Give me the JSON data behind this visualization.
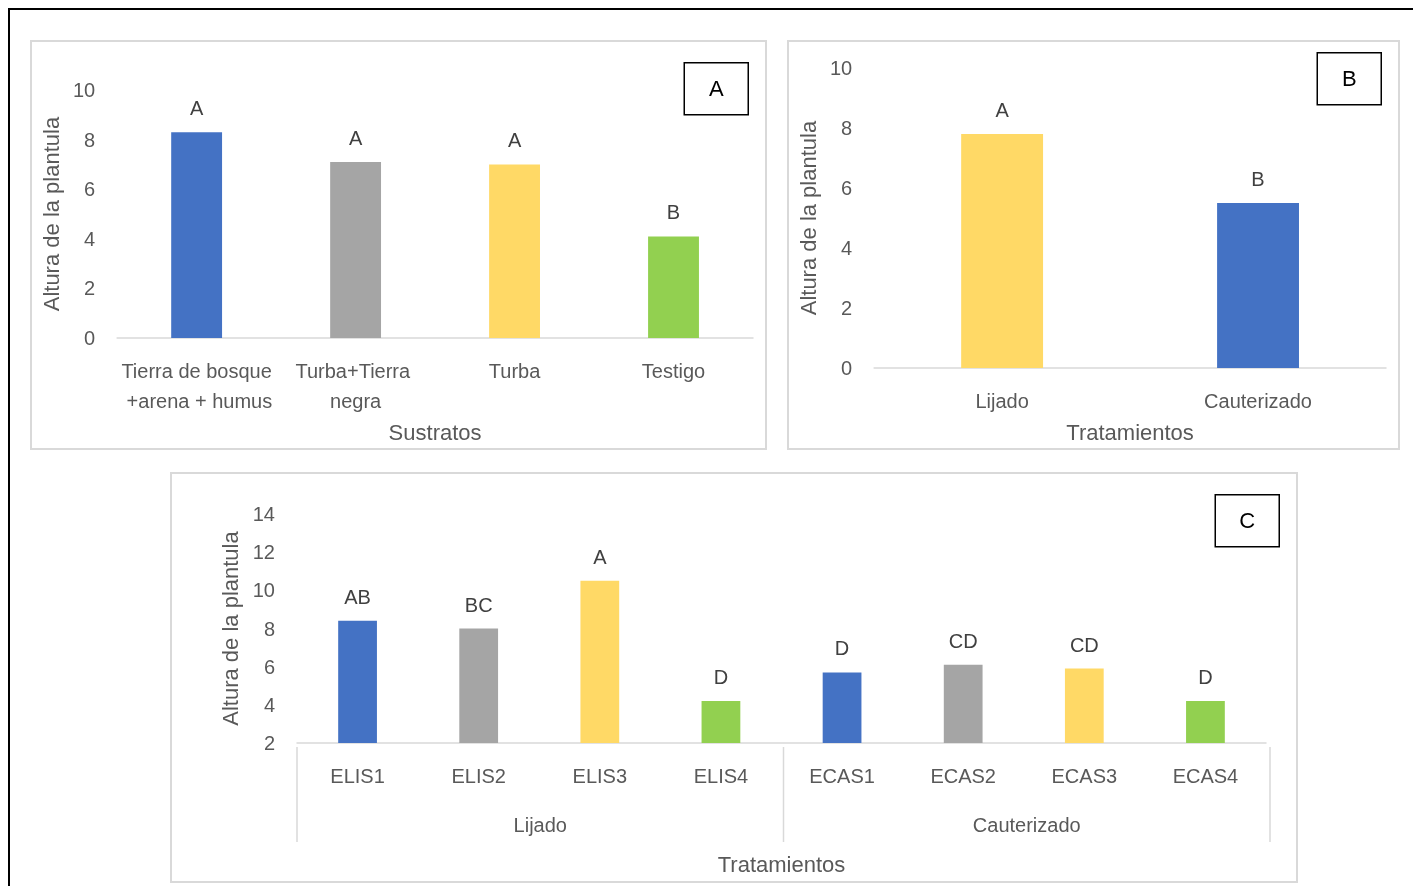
{
  "chart_data": [
    {
      "type": "bar",
      "ylabel": "Altura de la plantula",
      "xlabel": "Sustratos",
      "categories": [
        "Tierra de bosque +arena + humus",
        "Turba+Tierra negra",
        "Turba",
        "Testigo"
      ],
      "values": [
        8.3,
        7.1,
        7.0,
        4.1
      ],
      "colors": [
        "#4472c4",
        "#a5a5a5",
        "#ffd966",
        "#92d050"
      ],
      "ylim": [
        0,
        10
      ],
      "yticks": [
        0,
        2,
        4,
        6,
        8,
        10
      ],
      "annotations": [
        "A",
        {
          "text": "A",
          "x": "Tierra de bosque +arena + humus",
          "y": 8.3
        },
        {
          "text": "A",
          "x": "Turba+Tierra negra",
          "y": 7.1
        },
        {
          "text": "A",
          "x": "Turba",
          "y": 7.0
        },
        {
          "text": "B",
          "x": "Testigo",
          "y": 4.1
        }
      ]
    },
    {
      "type": "bar",
      "ylabel": "Altura de la plantula",
      "xlabel": "Tratamientos",
      "categories": [
        "Lijado",
        "Cauterizado"
      ],
      "values": [
        7.8,
        5.5
      ],
      "colors": [
        "#ffd966",
        "#4472c4"
      ],
      "ylim": [
        0,
        10
      ],
      "yticks": [
        0,
        2,
        4,
        6,
        8,
        10
      ],
      "annotations": [
        "B",
        {
          "text": "A",
          "x": "Lijado",
          "y": 7.8
        },
        {
          "text": "B",
          "x": "Cauterizado",
          "y": 5.5
        }
      ]
    },
    {
      "type": "bar",
      "ylabel": "Altura de la plantula",
      "xlabel": "Tratamientos",
      "categories": [
        "ELIS1",
        "ELIS2",
        "ELIS3",
        "ELIS4",
        "ECAS1",
        "ECAS2",
        "ECAS3",
        "ECAS4"
      ],
      "values": [
        8.4,
        8.0,
        10.5,
        4.2,
        5.7,
        6.1,
        5.9,
        4.2
      ],
      "colors": [
        "#4472c4",
        "#a5a5a5",
        "#ffd966",
        "#92d050",
        "#4472c4",
        "#a5a5a5",
        "#ffd966",
        "#92d050"
      ],
      "ylim": [
        2,
        14
      ],
      "yticks": [
        2,
        4,
        6,
        8,
        10,
        12,
        14
      ],
      "annotations": [
        "C",
        "Lijado",
        "Cauterizado",
        {
          "text": "AB",
          "x": "ELIS1",
          "y": 8.4
        },
        {
          "text": "BC",
          "x": "ELIS2",
          "y": 8.0
        },
        {
          "text": "A",
          "x": "ELIS3",
          "y": 10.5
        },
        {
          "text": "D",
          "x": "ELIS4",
          "y": 4.2
        },
        {
          "text": "D",
          "x": "ECAS1",
          "y": 5.7
        },
        {
          "text": "CD",
          "x": "ECAS2",
          "y": 6.1
        },
        {
          "text": "CD",
          "x": "ECAS3",
          "y": 5.9
        },
        {
          "text": "D",
          "x": "ECAS4",
          "y": 4.2
        }
      ]
    }
  ]
}
